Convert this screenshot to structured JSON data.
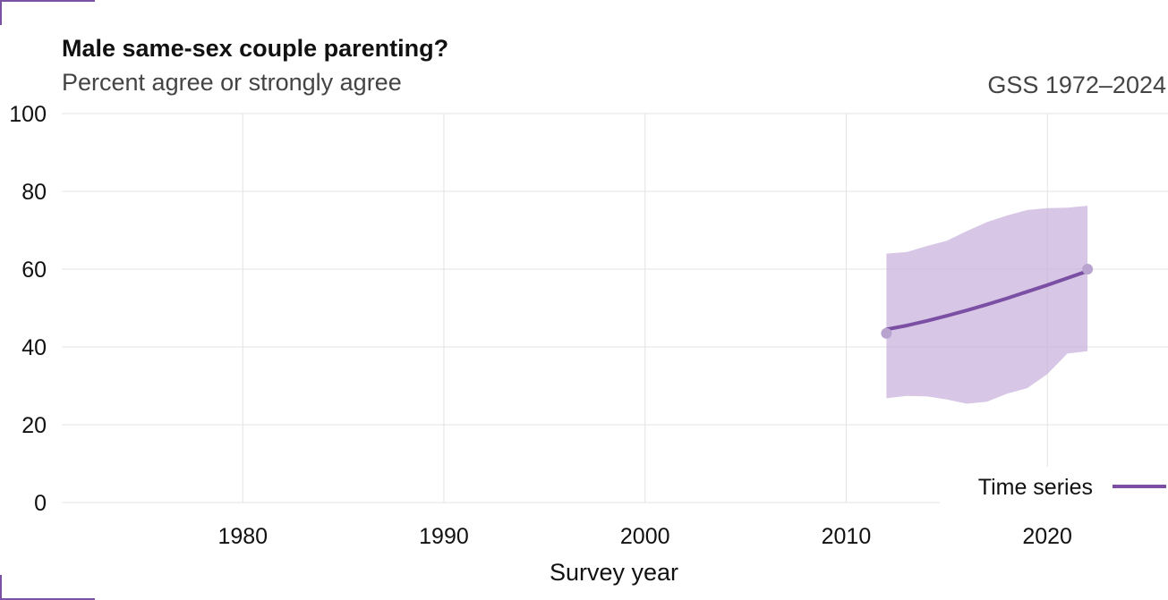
{
  "chart_data": {
    "type": "line",
    "title": "Male same-sex couple parenting?",
    "subtitle": "Percent agree or strongly agree",
    "source": "GSS 1972–2024",
    "xlabel": "Survey year",
    "ylabel": "",
    "xlim": [
      1971,
      2026
    ],
    "ylim": [
      0,
      100
    ],
    "xticks": [
      1980,
      1990,
      2000,
      2010,
      2020
    ],
    "yticks": [
      0,
      20,
      40,
      60,
      80,
      100
    ],
    "grid": true,
    "legend": {
      "position": "bottom-right",
      "entries": [
        "Time series"
      ]
    },
    "colors": {
      "series": "#7b4fa3",
      "band": "#c9b3dc",
      "points": "#b9a3cf"
    },
    "points": [
      {
        "x": 2012,
        "y": 43.5
      },
      {
        "x": 2022,
        "y": 60
      }
    ],
    "series": [
      {
        "name": "Time series",
        "x": [
          2012,
          2013,
          2014,
          2015,
          2016,
          2017,
          2018,
          2019,
          2020,
          2021,
          2022
        ],
        "y": [
          44.5,
          45.5,
          46.7,
          48.0,
          49.4,
          50.9,
          52.5,
          54.2,
          55.9,
          57.7,
          59.5
        ],
        "lower": [
          26.8,
          27.4,
          27.3,
          26.5,
          25.4,
          25.9,
          28.0,
          29.4,
          33.0,
          38.3,
          38.9
        ],
        "upper": [
          64.0,
          64.4,
          65.9,
          67.3,
          69.8,
          72.1,
          73.8,
          75.2,
          75.7,
          75.8,
          76.3
        ]
      }
    ]
  }
}
